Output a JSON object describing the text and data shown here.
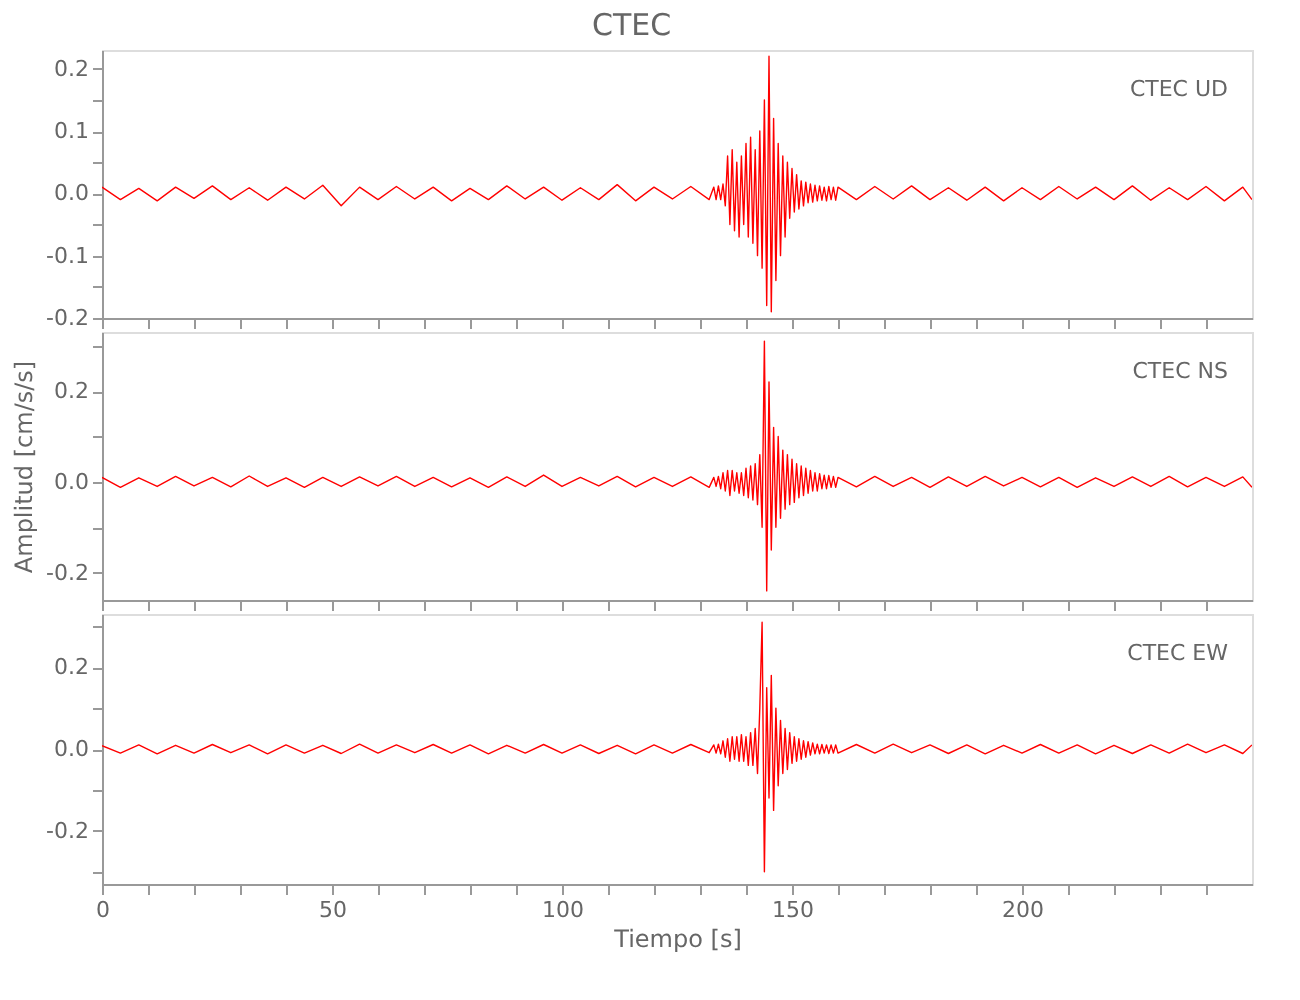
{
  "chart_data": [
    {
      "type": "line",
      "title": "CTEC",
      "tick_labels": "y",
      "grid": false,
      "legend": false,
      "marker": "none",
      "line_style": "solid",
      "xlim": [
        0,
        250
      ],
      "ylim": [
        -0.2,
        0.23
      ],
      "xticks": [
        0,
        {
          "value": 10,
          "label": null
        },
        {
          "value": 20,
          "label": null
        },
        {
          "value": 30,
          "label": null
        },
        {
          "value": 40,
          "label": null
        },
        50,
        {
          "value": 60,
          "label": null
        },
        {
          "value": 70,
          "label": null
        },
        {
          "value": 80,
          "label": null
        },
        {
          "value": 90,
          "label": null
        },
        100,
        {
          "value": 110,
          "label": null
        },
        {
          "value": 120,
          "label": null
        },
        {
          "value": 130,
          "label": null
        },
        {
          "value": 140,
          "label": null
        },
        150,
        {
          "value": 160,
          "label": null
        },
        {
          "value": 170,
          "label": null
        },
        {
          "value": 180,
          "label": null
        },
        {
          "value": 190,
          "label": null
        },
        200,
        {
          "value": 210,
          "label": null
        },
        {
          "value": 220,
          "label": null
        },
        {
          "value": 230,
          "label": null
        },
        {
          "value": 240,
          "label": null
        }
      ],
      "yticks": [
        {
          "value": -0.2,
          "label": "-0.2"
        },
        {
          "value": -0.15,
          "label": null
        },
        {
          "value": -0.1,
          "label": "-0.1"
        },
        {
          "value": -0.05,
          "label": null
        },
        {
          "value": 0,
          "label": "0.0"
        },
        {
          "value": 0.05,
          "label": null
        },
        {
          "value": 0.1,
          "label": "0.1"
        },
        {
          "value": 0.15,
          "label": null
        },
        {
          "value": 0.2,
          "label": "0.2"
        }
      ],
      "x": [
        0,
        4,
        8,
        12,
        16,
        20,
        24,
        28,
        32,
        36,
        40,
        44,
        48,
        52,
        56,
        60,
        64,
        68,
        72,
        76,
        80,
        84,
        88,
        92,
        96,
        100,
        104,
        108,
        112,
        116,
        120,
        124,
        128,
        132,
        133,
        133.5,
        134,
        134.5,
        135,
        135.5,
        136,
        136.5,
        137,
        137.5,
        138,
        138.5,
        139,
        139.5,
        140,
        140.5,
        141,
        141.5,
        142,
        142.5,
        143,
        143.5,
        144,
        144.5,
        145,
        145.5,
        146,
        146.5,
        147,
        147.5,
        148,
        148.5,
        149,
        149.5,
        150,
        150.5,
        151,
        151.5,
        152,
        152.5,
        153,
        153.5,
        154,
        154.5,
        155,
        155.5,
        156,
        156.5,
        157,
        157.5,
        158,
        158.5,
        159,
        159.5,
        160,
        164,
        168,
        172,
        176,
        180,
        184,
        188,
        192,
        196,
        200,
        204,
        208,
        212,
        216,
        220,
        224,
        228,
        232,
        236,
        240,
        244,
        248,
        250
      ],
      "series": [
        {
          "name": "CTEC   UD",
          "color": "#ff0000",
          "values": [
            0.01,
            -0.01,
            0.008,
            -0.012,
            0.01,
            -0.008,
            0.012,
            -0.01,
            0.009,
            -0.011,
            0.01,
            -0.009,
            0.013,
            -0.02,
            0.01,
            -0.01,
            0.011,
            -0.009,
            0.01,
            -0.012,
            0.008,
            -0.01,
            0.012,
            -0.009,
            0.01,
            -0.011,
            0.009,
            -0.01,
            0.014,
            -0.012,
            0.01,
            -0.009,
            0.011,
            -0.01,
            0.01,
            -0.01,
            0.012,
            -0.01,
            0.015,
            -0.02,
            0.06,
            -0.05,
            0.07,
            -0.06,
            0.05,
            -0.07,
            0.06,
            -0.05,
            0.08,
            -0.07,
            0.09,
            -0.08,
            0.07,
            -0.1,
            0.1,
            -0.12,
            0.15,
            -0.18,
            0.22,
            -0.19,
            0.12,
            -0.14,
            0.08,
            -0.1,
            0.06,
            -0.07,
            0.05,
            -0.04,
            0.04,
            -0.03,
            0.03,
            -0.025,
            0.02,
            -0.02,
            0.018,
            -0.015,
            0.015,
            -0.014,
            0.013,
            -0.012,
            0.012,
            -0.011,
            0.01,
            -0.012,
            0.011,
            -0.01,
            0.01,
            -0.011,
            0.01,
            -0.01,
            0.011,
            -0.009,
            0.012,
            -0.01,
            0.009,
            -0.011,
            0.01,
            -0.012,
            0.009,
            -0.01,
            0.011,
            -0.009,
            0.01,
            -0.01,
            0.012,
            -0.011,
            0.009,
            -0.01,
            0.011,
            -0.012,
            0.01,
            -0.01
          ]
        }
      ]
    },
    {
      "type": "line",
      "ylabel": "Amplitud [cm/s/s]",
      "tick_labels": "y",
      "grid": false,
      "legend": false,
      "marker": "none",
      "line_style": "solid",
      "xlim": [
        0,
        250
      ],
      "ylim": [
        -0.26,
        0.33
      ],
      "xticks": [
        0,
        {
          "value": 10,
          "label": null
        },
        {
          "value": 20,
          "label": null
        },
        {
          "value": 30,
          "label": null
        },
        {
          "value": 40,
          "label": null
        },
        50,
        {
          "value": 60,
          "label": null
        },
        {
          "value": 70,
          "label": null
        },
        {
          "value": 80,
          "label": null
        },
        {
          "value": 90,
          "label": null
        },
        100,
        {
          "value": 110,
          "label": null
        },
        {
          "value": 120,
          "label": null
        },
        {
          "value": 130,
          "label": null
        },
        {
          "value": 140,
          "label": null
        },
        150,
        {
          "value": 160,
          "label": null
        },
        {
          "value": 170,
          "label": null
        },
        {
          "value": 180,
          "label": null
        },
        {
          "value": 190,
          "label": null
        },
        200,
        {
          "value": 210,
          "label": null
        },
        {
          "value": 220,
          "label": null
        },
        {
          "value": 230,
          "label": null
        },
        {
          "value": 240,
          "label": null
        }
      ],
      "yticks": [
        {
          "value": -0.2,
          "label": "-0.2"
        },
        {
          "value": -0.1,
          "label": null
        },
        {
          "value": 0,
          "label": "0.0"
        },
        {
          "value": 0.1,
          "label": null
        },
        {
          "value": 0.2,
          "label": "0.2"
        },
        {
          "value": 0.3,
          "label": null
        }
      ],
      "x": [
        0,
        4,
        8,
        12,
        16,
        20,
        24,
        28,
        32,
        36,
        40,
        44,
        48,
        52,
        56,
        60,
        64,
        68,
        72,
        76,
        80,
        84,
        88,
        92,
        96,
        100,
        104,
        108,
        112,
        116,
        120,
        124,
        128,
        132,
        133,
        133.5,
        134,
        134.5,
        135,
        135.5,
        136,
        136.5,
        137,
        137.5,
        138,
        138.5,
        139,
        139.5,
        140,
        140.5,
        141,
        141.5,
        142,
        142.5,
        143,
        143.5,
        144,
        144.5,
        145,
        145.5,
        146,
        146.5,
        147,
        147.5,
        148,
        148.5,
        149,
        149.5,
        150,
        150.5,
        151,
        151.5,
        152,
        152.5,
        153,
        153.5,
        154,
        154.5,
        155,
        155.5,
        156,
        156.5,
        157,
        157.5,
        158,
        158.5,
        159,
        159.5,
        160,
        164,
        168,
        172,
        176,
        180,
        184,
        188,
        192,
        196,
        200,
        204,
        208,
        212,
        216,
        220,
        224,
        228,
        232,
        236,
        240,
        244,
        248,
        250
      ],
      "series": [
        {
          "name": "CTEC   NS",
          "color": "#ff0000",
          "values": [
            0.01,
            -0.012,
            0.009,
            -0.01,
            0.012,
            -0.009,
            0.01,
            -0.011,
            0.013,
            -0.01,
            0.009,
            -0.012,
            0.01,
            -0.01,
            0.011,
            -0.009,
            0.012,
            -0.01,
            0.01,
            -0.011,
            0.009,
            -0.012,
            0.011,
            -0.01,
            0.015,
            -0.01,
            0.01,
            -0.009,
            0.012,
            -0.011,
            0.01,
            -0.01,
            0.011,
            -0.012,
            0.01,
            -0.01,
            0.012,
            -0.015,
            0.02,
            -0.02,
            0.025,
            -0.03,
            0.025,
            -0.02,
            0.02,
            -0.025,
            0.02,
            -0.03,
            0.03,
            -0.035,
            0.035,
            -0.04,
            0.04,
            -0.05,
            0.06,
            -0.1,
            0.31,
            -0.24,
            0.22,
            -0.15,
            0.12,
            -0.1,
            0.1,
            -0.08,
            0.07,
            -0.06,
            0.06,
            -0.05,
            0.05,
            -0.045,
            0.04,
            -0.035,
            0.035,
            -0.03,
            0.03,
            -0.025,
            0.025,
            -0.02,
            0.02,
            -0.02,
            0.018,
            -0.015,
            0.015,
            -0.015,
            0.014,
            -0.012,
            0.012,
            -0.012,
            0.01,
            -0.011,
            0.012,
            -0.01,
            0.01,
            -0.012,
            0.011,
            -0.01,
            0.012,
            -0.009,
            0.01,
            -0.011,
            0.01,
            -0.012,
            0.009,
            -0.01,
            0.011,
            -0.01,
            0.012,
            -0.011,
            0.01,
            -0.01,
            0.011,
            -0.012
          ]
        }
      ]
    },
    {
      "type": "line",
      "xlabel": "Tiempo [s]",
      "grid": false,
      "legend": false,
      "marker": "none",
      "line_style": "solid",
      "xlim": [
        0,
        250
      ],
      "ylim": [
        -0.33,
        0.33
      ],
      "xticks": [
        0,
        {
          "value": 10,
          "label": null
        },
        {
          "value": 20,
          "label": null
        },
        {
          "value": 30,
          "label": null
        },
        {
          "value": 40,
          "label": null
        },
        50,
        {
          "value": 60,
          "label": null
        },
        {
          "value": 70,
          "label": null
        },
        {
          "value": 80,
          "label": null
        },
        {
          "value": 90,
          "label": null
        },
        100,
        {
          "value": 110,
          "label": null
        },
        {
          "value": 120,
          "label": null
        },
        {
          "value": 130,
          "label": null
        },
        {
          "value": 140,
          "label": null
        },
        150,
        {
          "value": 160,
          "label": null
        },
        {
          "value": 170,
          "label": null
        },
        {
          "value": 180,
          "label": null
        },
        {
          "value": 190,
          "label": null
        },
        200,
        {
          "value": 210,
          "label": null
        },
        {
          "value": 220,
          "label": null
        },
        {
          "value": 230,
          "label": null
        },
        {
          "value": 240,
          "label": null
        }
      ],
      "yticks": [
        {
          "value": -0.3,
          "label": null
        },
        {
          "value": -0.2,
          "label": "-0.2"
        },
        {
          "value": -0.1,
          "label": null
        },
        {
          "value": 0,
          "label": "0.0"
        },
        {
          "value": 0.1,
          "label": null
        },
        {
          "value": 0.2,
          "label": "0.2"
        },
        {
          "value": 0.3,
          "label": null
        }
      ],
      "x": [
        0,
        4,
        8,
        12,
        16,
        20,
        24,
        28,
        32,
        36,
        40,
        44,
        48,
        52,
        56,
        60,
        64,
        68,
        72,
        76,
        80,
        84,
        88,
        92,
        96,
        100,
        104,
        108,
        112,
        116,
        120,
        124,
        128,
        132,
        133,
        133.5,
        134,
        134.5,
        135,
        135.5,
        136,
        136.5,
        137,
        137.5,
        138,
        138.5,
        139,
        139.5,
        140,
        140.5,
        141,
        141.5,
        142,
        142.5,
        143,
        143.5,
        144,
        144.5,
        145,
        145.5,
        146,
        146.5,
        147,
        147.5,
        148,
        148.5,
        149,
        149.5,
        150,
        150.5,
        151,
        151.5,
        152,
        152.5,
        153,
        153.5,
        154,
        154.5,
        155,
        155.5,
        156,
        156.5,
        157,
        157.5,
        158,
        158.5,
        159,
        159.5,
        160,
        164,
        168,
        172,
        176,
        180,
        184,
        188,
        192,
        196,
        200,
        204,
        208,
        212,
        216,
        220,
        224,
        228,
        232,
        236,
        240,
        244,
        248,
        250
      ],
      "series": [
        {
          "name": "CTEC   EW",
          "color": "#ff0000",
          "values": [
            0.008,
            -0.01,
            0.01,
            -0.012,
            0.009,
            -0.01,
            0.011,
            -0.009,
            0.01,
            -0.012,
            0.01,
            -0.01,
            0.009,
            -0.011,
            0.012,
            -0.01,
            0.01,
            -0.009,
            0.011,
            -0.01,
            0.01,
            -0.012,
            0.009,
            -0.01,
            0.011,
            -0.01,
            0.01,
            -0.011,
            0.009,
            -0.012,
            0.01,
            -0.01,
            0.011,
            -0.009,
            0.01,
            -0.01,
            0.012,
            -0.012,
            0.02,
            -0.02,
            0.025,
            -0.03,
            0.03,
            -0.025,
            0.03,
            -0.03,
            0.035,
            -0.03,
            0.03,
            -0.04,
            0.04,
            -0.04,
            0.05,
            -0.06,
            0.1,
            0.31,
            -0.3,
            0.15,
            -0.12,
            0.18,
            -0.15,
            0.1,
            -0.09,
            0.07,
            -0.06,
            0.05,
            -0.05,
            0.04,
            -0.035,
            0.03,
            -0.03,
            0.025,
            -0.025,
            0.02,
            -0.02,
            0.018,
            -0.015,
            0.015,
            -0.012,
            0.012,
            -0.012,
            0.011,
            -0.01,
            0.01,
            -0.011,
            0.01,
            -0.01,
            0.01,
            -0.01,
            0.011,
            -0.01,
            0.012,
            -0.009,
            0.01,
            -0.011,
            0.01,
            -0.012,
            0.009,
            -0.01,
            0.011,
            -0.01,
            0.01,
            -0.012,
            0.009,
            -0.011,
            0.01,
            -0.01,
            0.012,
            -0.009,
            0.01,
            -0.011,
            0.01
          ]
        }
      ]
    }
  ]
}
